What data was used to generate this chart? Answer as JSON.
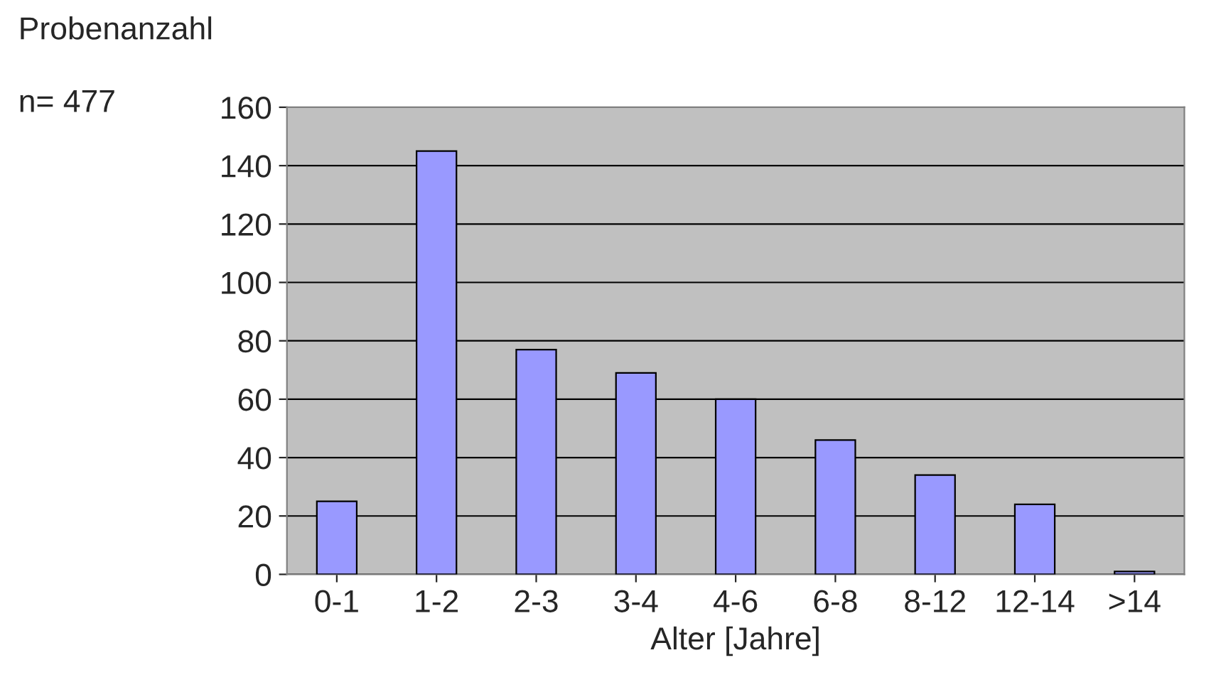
{
  "chart_data": {
    "type": "bar",
    "ylabel": "Probenanzahl",
    "xlabel": "Alter [Jahre]",
    "annotations": [
      "n= 477"
    ],
    "categories": [
      "0-1",
      "1-2",
      "2-3",
      "3-4",
      "4-6",
      "6-8",
      "8-12",
      "12-14",
      ">14"
    ],
    "values": [
      25,
      145,
      77,
      69,
      60,
      46,
      34,
      24,
      1
    ],
    "color": "#9999ff",
    "ylim": [
      0,
      160
    ],
    "yticks": [
      0,
      20,
      40,
      60,
      80,
      100,
      120,
      140,
      160
    ],
    "grid": "y",
    "legend": false
  }
}
